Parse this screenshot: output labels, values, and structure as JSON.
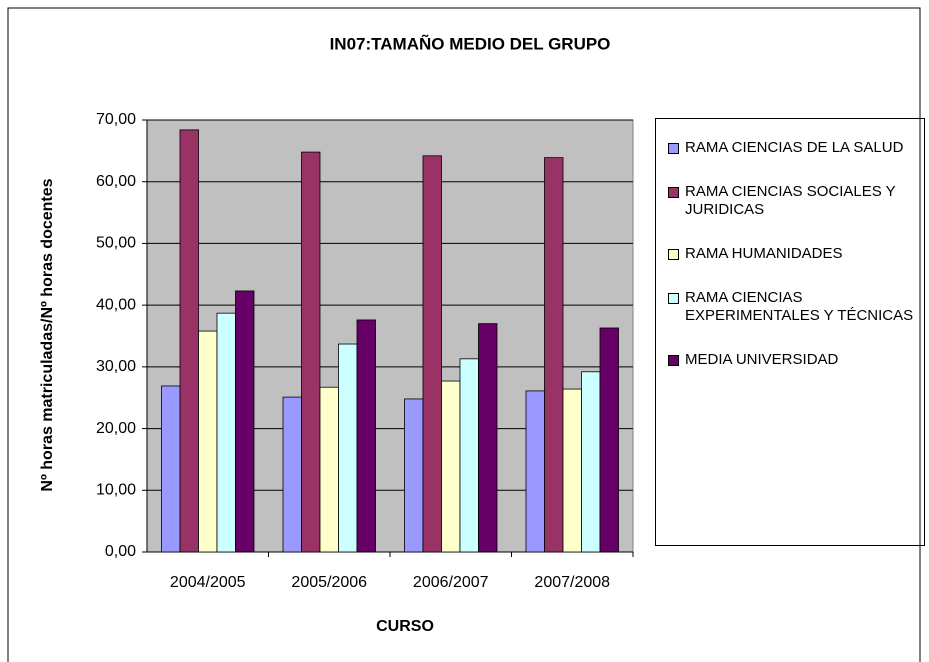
{
  "chart_data": {
    "type": "bar",
    "title": "IN07:TAMAÑO MEDIO DEL GRUPO",
    "xlabel": "CURSO",
    "ylabel": "Nº horas matriculadas/Nº horas docentes",
    "categories": [
      "2004/2005",
      "2005/2006",
      "2006/2007",
      "2007/2008"
    ],
    "series": [
      {
        "name": "RAMA CIENCIAS DE LA SALUD",
        "color": "#9999ff",
        "values": [
          26.9,
          25.1,
          24.8,
          26.1
        ]
      },
      {
        "name": "RAMA CIENCIAS SOCIALES Y JURIDICAS",
        "color": "#993366",
        "values": [
          68.4,
          64.8,
          64.2,
          63.9
        ]
      },
      {
        "name": "RAMA HUMANIDADES",
        "color": "#ffffcc",
        "values": [
          35.8,
          26.7,
          27.7,
          26.4
        ]
      },
      {
        "name": "RAMA CIENCIAS EXPERIMENTALES Y TÉCNICAS",
        "color": "#ccffff",
        "values": [
          38.7,
          33.7,
          31.3,
          29.2
        ]
      },
      {
        "name": "MEDIA UNIVERSIDAD",
        "color": "#660066",
        "values": [
          42.3,
          37.6,
          37.0,
          36.3
        ]
      }
    ],
    "ylim": [
      0,
      70
    ],
    "yticks": [
      {
        "value": 0,
        "label": "0,00"
      },
      {
        "value": 10,
        "label": "10,00"
      },
      {
        "value": 20,
        "label": "20,00"
      },
      {
        "value": 30,
        "label": "30,00"
      },
      {
        "value": 40,
        "label": "40,00"
      },
      {
        "value": 50,
        "label": "50,00"
      },
      {
        "value": 60,
        "label": "60,00"
      },
      {
        "value": 70,
        "label": "70,00"
      }
    ],
    "grid": true,
    "legend": "right"
  }
}
